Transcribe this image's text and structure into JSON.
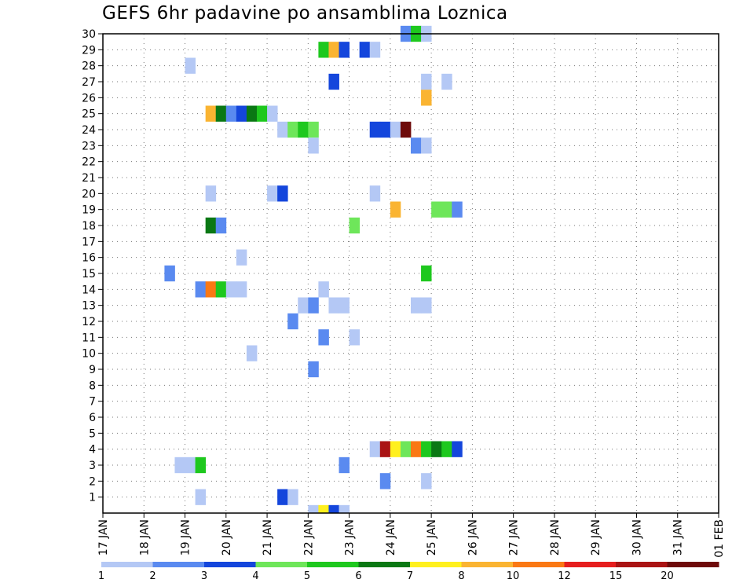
{
  "chart_data": {
    "type": "heatmap",
    "title": "GEFS 6hr padavine po ansamblima Loznica",
    "xlabel": "",
    "ylabel": "",
    "x_ticks": [
      "17 JAN",
      "18 JAN",
      "19 JAN",
      "20 JAN",
      "21 JAN",
      "22 JAN",
      "23 JAN",
      "24 JAN",
      "25 JAN",
      "26 JAN",
      "27 JAN",
      "28 JAN",
      "29 JAN",
      "30 JAN",
      "31 JAN",
      "01 FEB"
    ],
    "y_ticks": [
      "1",
      "2",
      "3",
      "4",
      "5",
      "6",
      "7",
      "8",
      "9",
      "10",
      "11",
      "12",
      "13",
      "14",
      "15",
      "16",
      "17",
      "18",
      "19",
      "20",
      "21",
      "22",
      "23",
      "24",
      "25",
      "26",
      "27",
      "28",
      "29",
      "30"
    ],
    "y_range": [
      0,
      30
    ],
    "x_range_days": [
      0,
      15
    ],
    "steps_per_day": 4,
    "grid": true,
    "legend": {
      "placement": "bottom",
      "labels": [
        "1",
        "2",
        "3",
        "4",
        "5",
        "6",
        "7",
        "8",
        "10",
        "12",
        "15",
        "20"
      ],
      "colors": [
        "#b4c8f5",
        "#5a8af0",
        "#1446dc",
        "#6ee65a",
        "#1ec81e",
        "#0a7814",
        "#fff01e",
        "#fab432",
        "#fa7814",
        "#e61e1e",
        "#aa1414",
        "#6e0a0a"
      ]
    },
    "cells": [
      {
        "m": 30,
        "s": 29,
        "c": 1
      },
      {
        "m": 30,
        "s": 30,
        "c": 4
      },
      {
        "m": 30,
        "s": 31,
        "c": 0
      },
      {
        "m": 29,
        "s": 21,
        "c": 4
      },
      {
        "m": 29,
        "s": 22,
        "c": 7
      },
      {
        "m": 29,
        "s": 23,
        "c": 2
      },
      {
        "m": 29,
        "s": 25,
        "c": 2
      },
      {
        "m": 29,
        "s": 26,
        "c": 0
      },
      {
        "m": 28,
        "s": 8,
        "c": 0
      },
      {
        "m": 27,
        "s": 22,
        "c": 2
      },
      {
        "m": 27,
        "s": 31,
        "c": 0
      },
      {
        "m": 27,
        "s": 33,
        "c": 0
      },
      {
        "m": 26,
        "s": 31,
        "c": 7
      },
      {
        "m": 25,
        "s": 10,
        "c": 7
      },
      {
        "m": 25,
        "s": 11,
        "c": 5
      },
      {
        "m": 25,
        "s": 12,
        "c": 1
      },
      {
        "m": 25,
        "s": 13,
        "c": 2
      },
      {
        "m": 25,
        "s": 14,
        "c": 5
      },
      {
        "m": 25,
        "s": 15,
        "c": 4
      },
      {
        "m": 25,
        "s": 16,
        "c": 0
      },
      {
        "m": 24,
        "s": 17,
        "c": 0
      },
      {
        "m": 24,
        "s": 18,
        "c": 3
      },
      {
        "m": 24,
        "s": 19,
        "c": 4
      },
      {
        "m": 24,
        "s": 20,
        "c": 3
      },
      {
        "m": 24,
        "s": 26,
        "c": 2
      },
      {
        "m": 24,
        "s": 27,
        "c": 2
      },
      {
        "m": 24,
        "s": 28,
        "c": 0
      },
      {
        "m": 24,
        "s": 29,
        "c": 11
      },
      {
        "m": 23,
        "s": 20,
        "c": 0
      },
      {
        "m": 23,
        "s": 30,
        "c": 1
      },
      {
        "m": 23,
        "s": 31,
        "c": 0
      },
      {
        "m": 20,
        "s": 10,
        "c": 0
      },
      {
        "m": 20,
        "s": 16,
        "c": 0
      },
      {
        "m": 20,
        "s": 17,
        "c": 2
      },
      {
        "m": 20,
        "s": 26,
        "c": 0
      },
      {
        "m": 19,
        "s": 28,
        "c": 7
      },
      {
        "m": 19,
        "s": 32,
        "c": 3
      },
      {
        "m": 19,
        "s": 33,
        "c": 3
      },
      {
        "m": 19,
        "s": 34,
        "c": 1
      },
      {
        "m": 18,
        "s": 10,
        "c": 5
      },
      {
        "m": 18,
        "s": 11,
        "c": 1
      },
      {
        "m": 18,
        "s": 24,
        "c": 3
      },
      {
        "m": 16,
        "s": 13,
        "c": 0
      },
      {
        "m": 15,
        "s": 6,
        "c": 1
      },
      {
        "m": 15,
        "s": 31,
        "c": 4
      },
      {
        "m": 14,
        "s": 9,
        "c": 1
      },
      {
        "m": 14,
        "s": 10,
        "c": 8
      },
      {
        "m": 14,
        "s": 11,
        "c": 4
      },
      {
        "m": 14,
        "s": 12,
        "c": 0
      },
      {
        "m": 14,
        "s": 13,
        "c": 0
      },
      {
        "m": 14,
        "s": 21,
        "c": 0
      },
      {
        "m": 13,
        "s": 19,
        "c": 0
      },
      {
        "m": 13,
        "s": 20,
        "c": 1
      },
      {
        "m": 13,
        "s": 22,
        "c": 0
      },
      {
        "m": 13,
        "s": 23,
        "c": 0
      },
      {
        "m": 13,
        "s": 30,
        "c": 0
      },
      {
        "m": 13,
        "s": 31,
        "c": 0
      },
      {
        "m": 12,
        "s": 18,
        "c": 1
      },
      {
        "m": 11,
        "s": 21,
        "c": 1
      },
      {
        "m": 11,
        "s": 24,
        "c": 0
      },
      {
        "m": 10,
        "s": 14,
        "c": 0
      },
      {
        "m": 9,
        "s": 20,
        "c": 1
      },
      {
        "m": 4,
        "s": 26,
        "c": 0
      },
      {
        "m": 4,
        "s": 27,
        "c": 10
      },
      {
        "m": 4,
        "s": 28,
        "c": 6
      },
      {
        "m": 4,
        "s": 29,
        "c": 3
      },
      {
        "m": 4,
        "s": 30,
        "c": 8
      },
      {
        "m": 4,
        "s": 31,
        "c": 4
      },
      {
        "m": 4,
        "s": 32,
        "c": 5
      },
      {
        "m": 4,
        "s": 33,
        "c": 4
      },
      {
        "m": 4,
        "s": 34,
        "c": 2
      },
      {
        "m": 3,
        "s": 7,
        "c": 0
      },
      {
        "m": 3,
        "s": 8,
        "c": 0
      },
      {
        "m": 3,
        "s": 9,
        "c": 4
      },
      {
        "m": 3,
        "s": 23,
        "c": 1
      },
      {
        "m": 2,
        "s": 27,
        "c": 1
      },
      {
        "m": 2,
        "s": 31,
        "c": 0
      },
      {
        "m": 1,
        "s": 9,
        "c": 0
      },
      {
        "m": 1,
        "s": 17,
        "c": 2
      },
      {
        "m": 1,
        "s": 18,
        "c": 0
      },
      {
        "m": 0,
        "s": 20,
        "c": 0
      },
      {
        "m": 0,
        "s": 21,
        "c": 6
      },
      {
        "m": 0,
        "s": 22,
        "c": 2
      },
      {
        "m": 0,
        "s": 23,
        "c": 0
      }
    ]
  }
}
